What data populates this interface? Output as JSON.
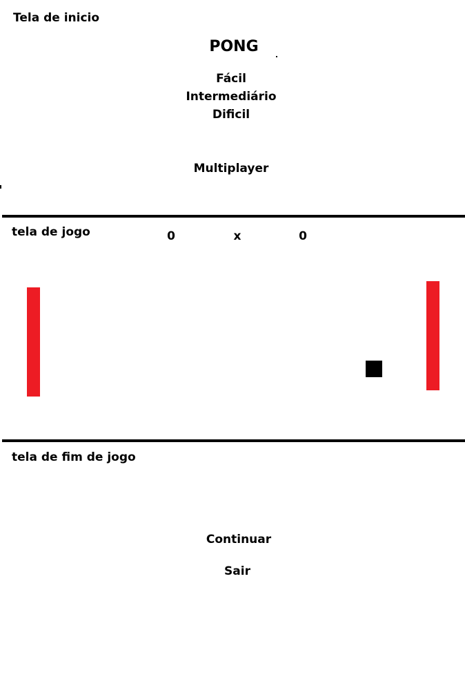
{
  "start_screen": {
    "section_label": "Tela de inicio",
    "title": "PONG",
    "difficulty_options": [
      "Fácil",
      "Intermediário",
      "Dificil"
    ],
    "multiplayer_label": "Multiplayer"
  },
  "game_screen": {
    "section_label": "tela de jogo",
    "score_left": "0",
    "score_separator": "x",
    "score_right": "0",
    "paddle_color": "#ed1c24",
    "ball_color": "#000000"
  },
  "end_screen": {
    "section_label": "tela de fim de jogo",
    "continue_label": "Continuar",
    "exit_label": "Sair"
  }
}
